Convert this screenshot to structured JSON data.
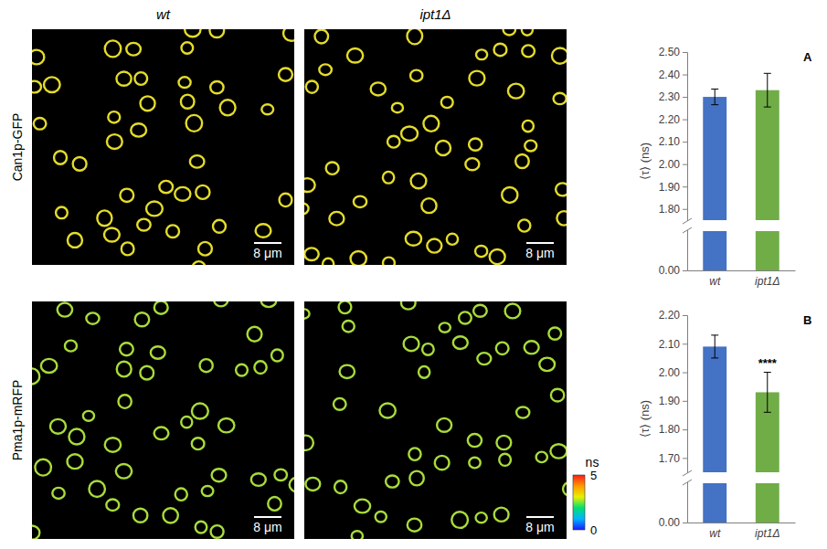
{
  "figure": {
    "columns": [
      "wt",
      "ipt1Δ"
    ],
    "rows": [
      "Can1p-GFP",
      "Pma1p-mRFP"
    ],
    "scale_bar": "8 μm",
    "colorbar": {
      "title": "ns",
      "range": [
        0,
        5
      ],
      "ticks": [
        5,
        0
      ]
    }
  },
  "chart_data": [
    {
      "type": "bar",
      "panel": "A",
      "y_label": "⟨τ⟩ (ns)",
      "categories": [
        "wt",
        "ipt1Δ"
      ],
      "values": [
        2.3,
        2.33
      ],
      "errors": [
        0.035,
        0.075
      ],
      "colors": [
        "#4472c4",
        "#70ad47"
      ],
      "ylim": [
        0,
        2.5
      ],
      "ybreak": 1.75,
      "yticks": [
        {
          "value": 0,
          "label": "0.00"
        },
        {
          "value": 1.8,
          "label": "1.80"
        },
        {
          "value": 1.9,
          "label": "1.90"
        },
        {
          "value": 2.0,
          "label": "2.00"
        },
        {
          "value": 2.1,
          "label": "2.10"
        },
        {
          "value": 2.2,
          "label": "2.20"
        },
        {
          "value": 2.3,
          "label": "2.30"
        },
        {
          "value": 2.4,
          "label": "2.40"
        },
        {
          "value": 2.5,
          "label": "2.50"
        }
      ],
      "grid": false
    },
    {
      "type": "bar",
      "panel": "B",
      "y_label": "⟨τ⟩ (ns)",
      "categories": [
        "wt",
        "ipt1Δ"
      ],
      "values": [
        2.09,
        1.93
      ],
      "errors": [
        0.04,
        0.07
      ],
      "colors": [
        "#4472c4",
        "#70ad47"
      ],
      "ylim": [
        0,
        2.2
      ],
      "ybreak": 1.65,
      "yticks": [
        {
          "value": 0,
          "label": "0.00"
        },
        {
          "value": 1.7,
          "label": "1.70"
        },
        {
          "value": 1.8,
          "label": "1.80"
        },
        {
          "value": 1.9,
          "label": "1.90"
        },
        {
          "value": 2.0,
          "label": "2.00"
        },
        {
          "value": 2.1,
          "label": "2.10"
        },
        {
          "value": 2.2,
          "label": "2.20"
        }
      ],
      "annotations": [
        {
          "text": "****",
          "category": "ipt1Δ"
        }
      ],
      "grid": false
    }
  ]
}
